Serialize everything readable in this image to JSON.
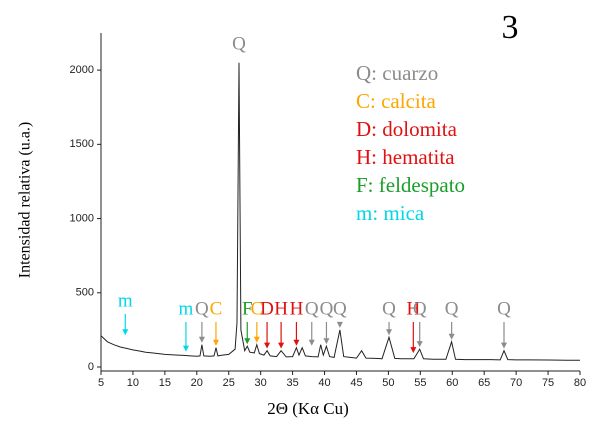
{
  "chart_data": {
    "type": "line",
    "panel_label": "3",
    "x_label": "2Θ (Kα Cu)",
    "y_label": "Intensidad relativa (u.a.)",
    "xlim": [
      5,
      80
    ],
    "ylim": [
      0,
      2250
    ],
    "xticks": [
      5,
      10,
      15,
      20,
      25,
      30,
      35,
      40,
      45,
      50,
      55,
      60,
      65,
      70,
      75,
      80
    ],
    "yticks": [
      0,
      500,
      1000,
      1500,
      2000
    ],
    "color": "#222222",
    "x": [
      5,
      5.5,
      6,
      7,
      8,
      9,
      10,
      11,
      12,
      13,
      14,
      15,
      16,
      17,
      18,
      19,
      20,
      20.5,
      20.8,
      21.1,
      22,
      22.7,
      23,
      23.3,
      24,
      25,
      26,
      26.3,
      26.6,
      26.9,
      27.5,
      27.9,
      28.3,
      29,
      29.4,
      29.8,
      30.5,
      31,
      31.5,
      32.5,
      33.2,
      34,
      35,
      35.6,
      36,
      36.5,
      37,
      38,
      39,
      39.4,
      39.8,
      40.3,
      40.8,
      41.5,
      42.4,
      43,
      44,
      45,
      45.8,
      46.5,
      48,
      49,
      50.1,
      51,
      52,
      53,
      54,
      54.9,
      55.5,
      57,
      59,
      59.9,
      60.5,
      62,
      64,
      66,
      67.5,
      68.1,
      68.7,
      70,
      72,
      75,
      78,
      80
    ],
    "values": [
      210,
      190,
      170,
      150,
      135,
      125,
      115,
      108,
      100,
      95,
      90,
      85,
      82,
      80,
      78,
      75,
      72,
      75,
      150,
      75,
      72,
      75,
      130,
      75,
      80,
      85,
      120,
      300,
      2050,
      250,
      110,
      140,
      100,
      95,
      150,
      90,
      80,
      110,
      75,
      70,
      110,
      68,
      70,
      130,
      80,
      130,
      75,
      70,
      68,
      150,
      80,
      140,
      70,
      65,
      250,
      70,
      65,
      60,
      110,
      60,
      58,
      55,
      200,
      58,
      55,
      55,
      55,
      120,
      55,
      52,
      52,
      170,
      52,
      50,
      50,
      50,
      48,
      110,
      50,
      48,
      48,
      47,
      46,
      45
    ],
    "annotations": [
      {
        "text": "m",
        "x": 8.8,
        "y": 200,
        "color": "#00d8e8"
      },
      {
        "text": "m",
        "x": 18.3,
        "y": 90,
        "color": "#00d8e8"
      },
      {
        "text": "Q",
        "x": 20.8,
        "y": 150,
        "color": "#8c8c8c"
      },
      {
        "text": "C",
        "x": 23.0,
        "y": 130,
        "color": "#ffa500"
      },
      {
        "text": "Q",
        "x": 26.6,
        "y": 2050,
        "color": "#8c8c8c"
      },
      {
        "text": "F",
        "x": 27.9,
        "y": 140,
        "color": "#1a9e2a"
      },
      {
        "text": "C",
        "x": 29.4,
        "y": 150,
        "color": "#ffa500"
      },
      {
        "text": "D",
        "x": 31.0,
        "y": 110,
        "color": "#e01010"
      },
      {
        "text": "H",
        "x": 33.2,
        "y": 110,
        "color": "#e01010"
      },
      {
        "text": "H",
        "x": 35.6,
        "y": 130,
        "color": "#e01010"
      },
      {
        "text": "Q",
        "x": 38.0,
        "y": 130,
        "color": "#8c8c8c"
      },
      {
        "text": "Q",
        "x": 40.3,
        "y": 140,
        "color": "#8c8c8c"
      },
      {
        "text": "Q",
        "x": 42.4,
        "y": 250,
        "color": "#8c8c8c"
      },
      {
        "text": "Q",
        "x": 50.1,
        "y": 200,
        "color": "#8c8c8c"
      },
      {
        "text": "H",
        "x": 53.9,
        "y": 80,
        "color": "#e01010"
      },
      {
        "text": "Q",
        "x": 54.9,
        "y": 120,
        "color": "#8c8c8c"
      },
      {
        "text": "Q",
        "x": 59.9,
        "y": 170,
        "color": "#8c8c8c"
      },
      {
        "text": "Q",
        "x": 68.1,
        "y": 110,
        "color": "#8c8c8c"
      }
    ],
    "key": [
      {
        "text": "Q: cuarzo",
        "color": "#8c8c8c"
      },
      {
        "text": "C: calcita",
        "color": "#ffa500"
      },
      {
        "text": "D: dolomita",
        "color": "#e01010"
      },
      {
        "text": "H: hematita",
        "color": "#e01010"
      },
      {
        "text": "F: feldespato",
        "color": "#1a9e2a"
      },
      {
        "text": "m: mica",
        "color": "#00d8e8"
      }
    ]
  }
}
